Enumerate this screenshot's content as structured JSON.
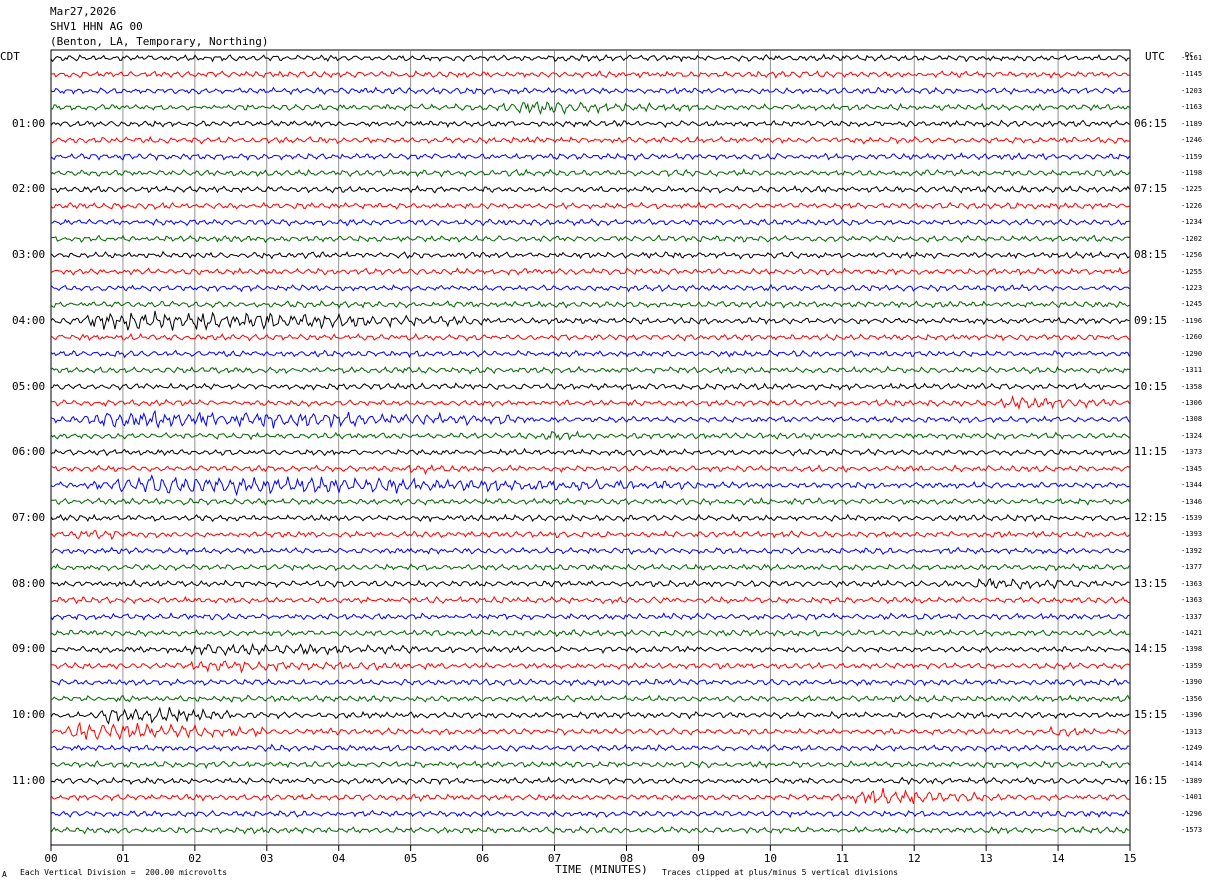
{
  "header": {
    "date": "Mar27,2026",
    "station": "SHV1 HHN AG 00",
    "location": "(Benton, LA, Temporary, Northing)"
  },
  "left_tz": "CDT",
  "right_tz": "UTC",
  "dc_header": "DC",
  "footer": {
    "scale_note": "Each Vertical Division =  200.00 microvolts",
    "clip_note": "Traces clipped at plus/minus 5 vertical divisions",
    "corner_mark": "A"
  },
  "chart_data": {
    "type": "line",
    "title": "SHV1 HHN AG 00",
    "xlabel": "TIME (MINUTES)",
    "ylabel": "",
    "xlim": [
      0,
      15
    ],
    "x_ticks": [
      "00",
      "01",
      "02",
      "03",
      "04",
      "05",
      "06",
      "07",
      "08",
      "09",
      "10",
      "11",
      "12",
      "13",
      "14",
      "15"
    ],
    "grid": true,
    "trace_minutes": 15,
    "trace_count": 48,
    "trace_colors": [
      "#000000",
      "#ff0000",
      "#0000ff",
      "#006600"
    ],
    "left_time_labels": [
      "01:00",
      "02:00",
      "03:00",
      "04:00",
      "05:00",
      "06:00",
      "07:00",
      "08:00",
      "09:00",
      "10:00",
      "11:00"
    ],
    "right_time_labels": [
      "06:15",
      "07:15",
      "08:15",
      "09:15",
      "10:15",
      "11:15",
      "12:15",
      "13:15",
      "14:15",
      "15:15",
      "16:15"
    ],
    "dc_offsets": [
      "-1161",
      "-1145",
      "-1203",
      "-1163",
      "-1189",
      "-1246",
      "-1159",
      "-1198",
      "-1225",
      "-1226",
      "-1234",
      "-1202",
      "-1256",
      "-1255",
      "-1223",
      "-1245",
      "-1196",
      "-1260",
      "-1290",
      "-1311",
      "-1358",
      "-1306",
      "-1308",
      "-1324",
      "-1373",
      "-1345",
      "-1344",
      "-1346",
      "-1539",
      "-1393",
      "-1392",
      "-1377",
      "-1363",
      "-1363",
      "-1337",
      "-1421",
      "-1398",
      "-1359",
      "-1390",
      "-1356",
      "-1396",
      "-1313",
      "-1249",
      "-1414",
      "-1389",
      "-1401",
      "-1296",
      "-1573"
    ],
    "events": [
      {
        "trace": 3,
        "start_min": 5.9,
        "end_min": 9.5,
        "level": "moderate"
      },
      {
        "trace": 16,
        "start_min": 0.0,
        "end_min": 6.0,
        "level": "strong"
      },
      {
        "trace": 21,
        "start_min": 13.0,
        "end_min": 15.0,
        "level": "moderate"
      },
      {
        "trace": 22,
        "start_min": 0.0,
        "end_min": 6.5,
        "level": "strong"
      },
      {
        "trace": 23,
        "start_min": 6.8,
        "end_min": 7.6,
        "level": "moderate"
      },
      {
        "trace": 25,
        "start_min": 4.8,
        "end_min": 5.6,
        "level": "moderate"
      },
      {
        "trace": 26,
        "start_min": 0.0,
        "end_min": 9.0,
        "level": "strong"
      },
      {
        "trace": 29,
        "start_min": 0.2,
        "end_min": 1.2,
        "level": "moderate"
      },
      {
        "trace": 32,
        "start_min": 12.5,
        "end_min": 14.8,
        "level": "moderate"
      },
      {
        "trace": 36,
        "start_min": 1.5,
        "end_min": 6.0,
        "level": "moderate"
      },
      {
        "trace": 37,
        "start_min": 1.5,
        "end_min": 5.5,
        "level": "moderate"
      },
      {
        "trace": 40,
        "start_min": 0.5,
        "end_min": 2.5,
        "level": "strong"
      },
      {
        "trace": 41,
        "start_min": 0.0,
        "end_min": 3.0,
        "level": "strong"
      },
      {
        "trace": 41,
        "start_min": 13.8,
        "end_min": 14.8,
        "level": "moderate"
      },
      {
        "trace": 45,
        "start_min": 11.0,
        "end_min": 13.0,
        "level": "strong"
      }
    ]
  }
}
